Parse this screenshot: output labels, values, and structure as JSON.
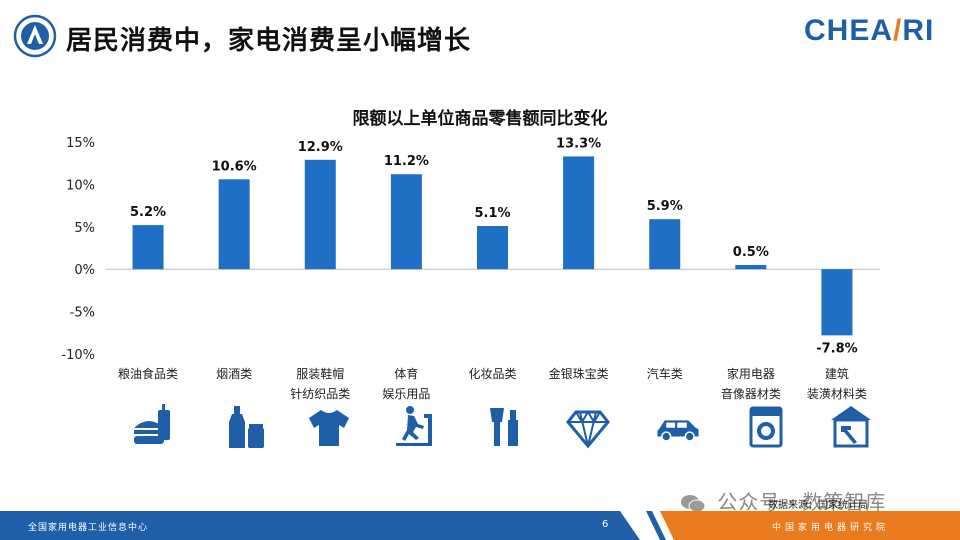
{
  "header": {
    "title": "居民消费中，家电消费呈小幅增长",
    "brand": "CHEARI"
  },
  "chart_data": {
    "type": "bar",
    "title": "限额以上单位商品零售额同比变化",
    "xlabel": "",
    "ylabel": "",
    "categories": [
      [
        "粮油食品类"
      ],
      [
        "烟酒类"
      ],
      [
        "服装鞋帽",
        "针纺织品类"
      ],
      [
        "体育",
        "娱乐用品"
      ],
      [
        "化妆品类"
      ],
      [
        "金银珠宝类"
      ],
      [
        "汽车类"
      ],
      [
        "家用电器",
        "音像器材类"
      ],
      [
        "建筑",
        "装潢材料类"
      ]
    ],
    "values": [
      5.2,
      10.6,
      12.9,
      11.2,
      5.1,
      13.3,
      5.9,
      0.5,
      -7.8
    ],
    "value_labels": [
      "5.2%",
      "10.6%",
      "12.9%",
      "11.2%",
      "5.1%",
      "13.3%",
      "5.9%",
      "0.5%",
      "-7.8%"
    ],
    "y_ticks": [
      15,
      10,
      5,
      0,
      -5,
      -10
    ],
    "y_tick_labels": [
      "15%",
      "10%",
      "5%",
      "0%",
      "-5%",
      "-10%"
    ],
    "ylim": [
      -10,
      15
    ],
    "bar_color": "#1f6fc5",
    "grid": false
  },
  "icons": [
    "fast-food-icon",
    "liquor-bottle-icon",
    "tshirt-icon",
    "treadmill-icon",
    "cosmetics-icon",
    "diamond-icon",
    "car-icon",
    "washing-machine-icon",
    "house-tools-icon"
  ],
  "source": "数据来源：国家统计局",
  "watermark_text": "公众号 · 数策智库",
  "footer": {
    "left_text": "全国家用电器工业信息中心",
    "page_number": "6",
    "right_text": "中国家用电器研究院"
  },
  "colors": {
    "primary_blue": "#1f5fa8",
    "accent_orange": "#e97a1d"
  }
}
